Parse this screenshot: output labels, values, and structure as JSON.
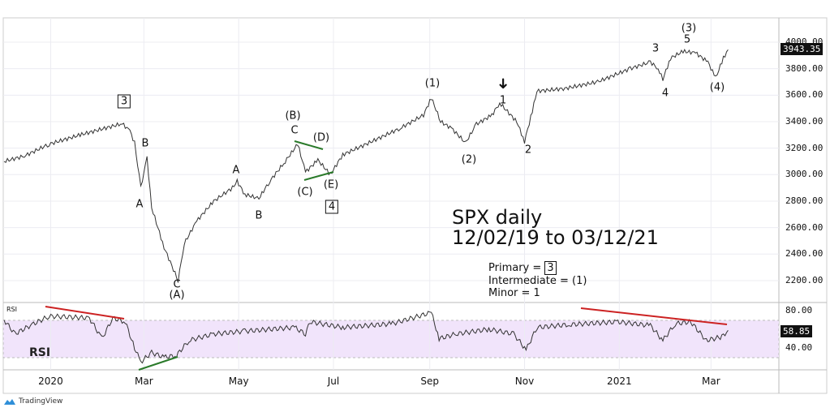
{
  "chart_data": {
    "type": "line",
    "title": "SPX  daily",
    "subtitle": "12/02/19 to 03/12/21",
    "date_range": [
      "2019-12-02",
      "2021-03-12"
    ],
    "ylim": [
      2050,
      4100
    ],
    "price_ticks": [
      "4000.00",
      "3800.00",
      "3600.00",
      "3400.00",
      "3200.00",
      "3000.00",
      "2800.00",
      "2600.00",
      "2400.00",
      "2200.00"
    ],
    "price_tick_values": [
      4000,
      3800,
      3600,
      3400,
      3200,
      3000,
      2800,
      2600,
      2400,
      2200
    ],
    "last_price": "3943.35",
    "series": [
      {
        "name": "SPX",
        "points": [
          [
            "2019-12-02",
            3100
          ],
          [
            "2019-12-15",
            3140
          ],
          [
            "2019-12-31",
            3230
          ],
          [
            "2020-01-20",
            3300
          ],
          [
            "2020-02-16",
            3385
          ],
          [
            "2020-02-21",
            3330
          ],
          [
            "2020-02-24",
            3240
          ],
          [
            "2020-02-28",
            2900
          ],
          [
            "2020-03-03",
            3130
          ],
          [
            "2020-03-06",
            2750
          ],
          [
            "2020-03-14",
            2450
          ],
          [
            "2020-03-23",
            2200
          ],
          [
            "2020-03-27",
            2480
          ],
          [
            "2020-04-04",
            2650
          ],
          [
            "2020-04-15",
            2800
          ],
          [
            "2020-04-27",
            2900
          ],
          [
            "2020-04-30",
            2950
          ],
          [
            "2020-05-05",
            2850
          ],
          [
            "2020-05-14",
            2820
          ],
          [
            "2020-05-21",
            2950
          ],
          [
            "2020-05-31",
            3100
          ],
          [
            "2020-06-08",
            3230
          ],
          [
            "2020-06-13",
            3020
          ],
          [
            "2020-06-21",
            3110
          ],
          [
            "2020-06-29",
            3000
          ],
          [
            "2020-07-07",
            3150
          ],
          [
            "2020-07-22",
            3230
          ],
          [
            "2020-08-13",
            3350
          ],
          [
            "2020-08-28",
            3450
          ],
          [
            "2020-09-02",
            3580
          ],
          [
            "2020-09-08",
            3400
          ],
          [
            "2020-09-15",
            3350
          ],
          [
            "2020-09-24",
            3240
          ],
          [
            "2020-10-01",
            3380
          ],
          [
            "2020-10-11",
            3450
          ],
          [
            "2020-10-16",
            3540
          ],
          [
            "2020-10-27",
            3400
          ],
          [
            "2020-11-01",
            3250
          ],
          [
            "2020-11-06",
            3480
          ],
          [
            "2020-11-09",
            3630
          ],
          [
            "2020-11-27",
            3650
          ],
          [
            "2020-12-18",
            3700
          ],
          [
            "2021-01-08",
            3800
          ],
          [
            "2021-01-21",
            3850
          ],
          [
            "2021-01-26",
            3800
          ],
          [
            "2021-01-29",
            3720
          ],
          [
            "2021-02-03",
            3880
          ],
          [
            "2021-02-11",
            3930
          ],
          [
            "2021-02-19",
            3920
          ],
          [
            "2021-02-27",
            3850
          ],
          [
            "2021-03-04",
            3730
          ],
          [
            "2021-03-09",
            3880
          ],
          [
            "2021-03-12",
            3943.35
          ]
        ]
      }
    ],
    "rsi": {
      "label": "RSI",
      "panel_label": "RSI",
      "ticks": [
        "80.00",
        "40.00"
      ],
      "tick_values": [
        80,
        40
      ],
      "band": [
        30,
        70
      ],
      "last": "58.85",
      "points": [
        [
          "2019-12-02",
          70
        ],
        [
          "2019-12-09",
          55
        ],
        [
          "2019-12-20",
          65
        ],
        [
          "2019-12-31",
          74
        ],
        [
          "2020-01-15",
          73
        ],
        [
          "2020-01-26",
          72
        ],
        [
          "2020-02-03",
          50
        ],
        [
          "2020-02-10",
          72
        ],
        [
          "2020-02-18",
          68
        ],
        [
          "2020-02-24",
          40
        ],
        [
          "2020-02-28",
          25
        ],
        [
          "2020-03-06",
          35
        ],
        [
          "2020-03-14",
          30
        ],
        [
          "2020-03-22",
          32
        ],
        [
          "2020-03-30",
          48
        ],
        [
          "2020-04-15",
          55
        ],
        [
          "2020-05-05",
          58
        ],
        [
          "2020-06-06",
          62
        ],
        [
          "2020-06-13",
          55
        ],
        [
          "2020-06-16",
          68
        ],
        [
          "2020-07-07",
          62
        ],
        [
          "2020-08-08",
          66
        ],
        [
          "2020-09-02",
          78
        ],
        [
          "2020-09-07",
          50
        ],
        [
          "2020-09-18",
          55
        ],
        [
          "2020-10-09",
          60
        ],
        [
          "2020-10-25",
          55
        ],
        [
          "2020-11-02",
          38
        ],
        [
          "2020-11-09",
          62
        ],
        [
          "2020-11-30",
          65
        ],
        [
          "2020-12-31",
          68
        ],
        [
          "2021-01-21",
          64
        ],
        [
          "2021-01-29",
          48
        ],
        [
          "2021-02-06",
          66
        ],
        [
          "2021-02-16",
          68
        ],
        [
          "2021-02-26",
          48
        ],
        [
          "2021-03-08",
          52
        ],
        [
          "2021-03-12",
          58.85
        ]
      ]
    },
    "x_ticks": [
      [
        "2020-01-01",
        "2020"
      ],
      [
        "2020-03-01",
        "Mar"
      ],
      [
        "2020-05-01",
        "May"
      ],
      [
        "2020-07-01",
        "Jul"
      ],
      [
        "2020-09-01",
        "Sep"
      ],
      [
        "2020-11-01",
        "Nov"
      ],
      [
        "2021-01-01",
        "2021"
      ],
      [
        "2021-03-01",
        "Mar"
      ]
    ],
    "annotations": {
      "p3": "3",
      "B1": "B",
      "A1": "A",
      "C1": "C",
      "A_big": "(A)",
      "A2": "A",
      "B2": "B",
      "B_big": "(B)",
      "C2": "C",
      "D_big": "(D)",
      "C_big": "(C)",
      "E_big": "(E)",
      "p4": "4",
      "i1": "(1)",
      "arrow": "➜",
      "m1": "1",
      "i2": "(2)",
      "m2": "2",
      "m3": "3",
      "m4": "4",
      "i3": "(3)",
      "m5": "5",
      "i4": "(4)"
    },
    "legend": {
      "primary": "Primary   =",
      "primary_val": "3",
      "intermediate": "Intermediate  =  (1)",
      "minor": "Minor  =  1"
    },
    "colors": {
      "price": "#333333",
      "red_trend": "#cc2222",
      "green_trend": "#2a7a2a",
      "rsi_band": "#f1e4fb"
    }
  },
  "brand": "TradingView"
}
